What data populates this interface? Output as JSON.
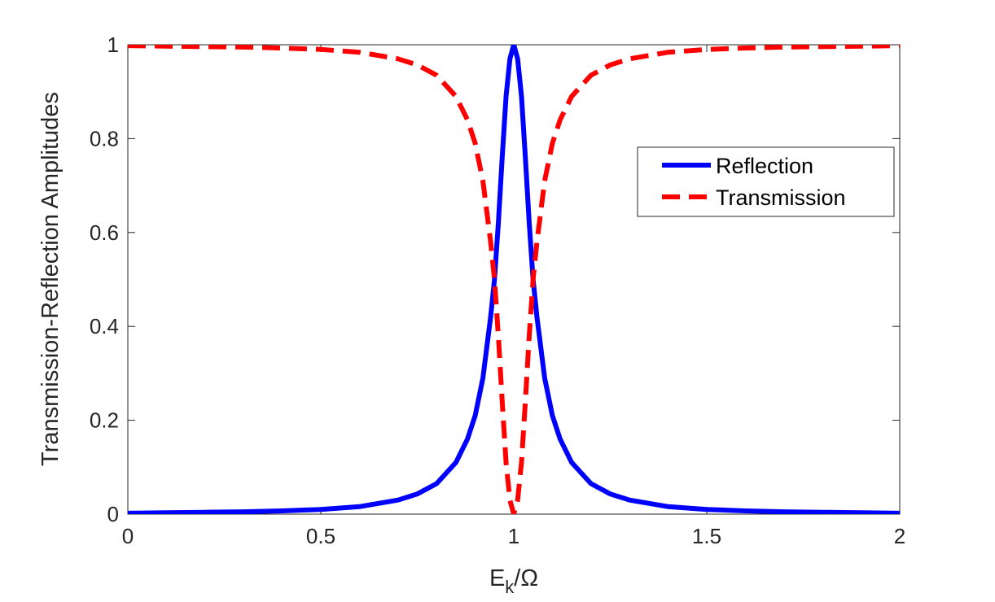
{
  "chart_data": {
    "type": "line",
    "title": "",
    "xlabel": "E_k/Ω",
    "xlabel_parts": {
      "base": "E",
      "sub": "k",
      "rest": "/Ω"
    },
    "ylabel": "Transmission-Reflection Amplitudes",
    "xlim": [
      0,
      2
    ],
    "ylim": [
      0,
      1
    ],
    "x_ticks": [
      0,
      0.5,
      1,
      1.5,
      2
    ],
    "x_tick_labels": [
      "0",
      "0.5",
      "1",
      "1.5",
      "2"
    ],
    "y_ticks": [
      0,
      0.2,
      0.4,
      0.6,
      0.8,
      1
    ],
    "y_tick_labels": [
      "0",
      "0.2",
      "0.4",
      "0.6",
      "0.8",
      "1"
    ],
    "grid": false,
    "legend": {
      "position": "right"
    },
    "x": [
      0,
      0.1,
      0.2,
      0.3,
      0.4,
      0.5,
      0.6,
      0.7,
      0.75,
      0.8,
      0.85,
      0.88,
      0.9,
      0.92,
      0.94,
      0.95,
      0.96,
      0.97,
      0.98,
      0.99,
      1.0,
      1.01,
      1.02,
      1.03,
      1.04,
      1.05,
      1.06,
      1.08,
      1.1,
      1.12,
      1.15,
      1.2,
      1.25,
      1.3,
      1.4,
      1.5,
      1.6,
      1.7,
      1.8,
      1.9,
      2.0
    ],
    "series": [
      {
        "name": "Reflection",
        "color": "#0000ff",
        "style": "solid",
        "values": [
          0.002,
          0.003,
          0.004,
          0.005,
          0.007,
          0.01,
          0.016,
          0.03,
          0.043,
          0.065,
          0.11,
          0.16,
          0.21,
          0.29,
          0.42,
          0.5,
          0.62,
          0.76,
          0.89,
          0.97,
          1.0,
          0.97,
          0.89,
          0.76,
          0.62,
          0.5,
          0.42,
          0.29,
          0.21,
          0.16,
          0.11,
          0.065,
          0.043,
          0.03,
          0.016,
          0.01,
          0.007,
          0.005,
          0.004,
          0.003,
          0.002
        ]
      },
      {
        "name": "Transmission",
        "color": "#ff0000",
        "style": "dashed",
        "values": [
          0.998,
          0.997,
          0.996,
          0.995,
          0.993,
          0.99,
          0.984,
          0.97,
          0.957,
          0.935,
          0.89,
          0.84,
          0.79,
          0.71,
          0.58,
          0.5,
          0.38,
          0.24,
          0.11,
          0.03,
          0.0,
          0.03,
          0.11,
          0.24,
          0.38,
          0.5,
          0.58,
          0.71,
          0.79,
          0.84,
          0.89,
          0.935,
          0.957,
          0.97,
          0.984,
          0.99,
          0.993,
          0.995,
          0.996,
          0.997,
          0.998
        ]
      }
    ]
  }
}
